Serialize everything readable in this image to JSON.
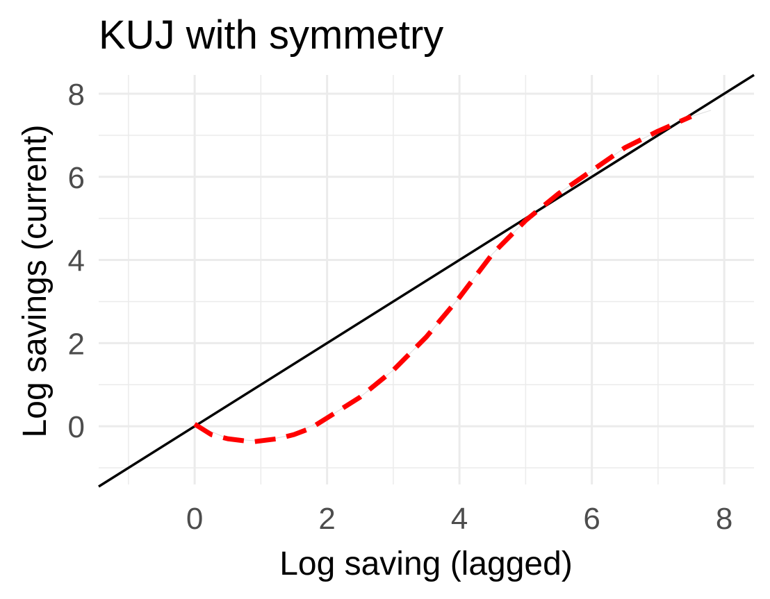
{
  "chart_data": {
    "type": "line",
    "title": "KUJ with symmetry",
    "xlabel": "Log saving (lagged)",
    "ylabel": "Log savings (current)",
    "xlim": [
      -1.45,
      8.45
    ],
    "ylim": [
      -1.4,
      8.45
    ],
    "x_ticks": [
      0,
      2,
      4,
      6,
      8
    ],
    "y_ticks": [
      0,
      2,
      4,
      6,
      8
    ],
    "grid": true,
    "legend": "none",
    "series": [
      {
        "style": "solid",
        "color": "#000000",
        "x": [
          -1.45,
          8.45
        ],
        "y": [
          -1.45,
          8.45
        ]
      },
      {
        "style": "dashed",
        "color": "#ff0000",
        "x": [
          0.0,
          0.25,
          0.5,
          0.75,
          0.9,
          1.25,
          1.5,
          1.75,
          2.0,
          2.5,
          3.0,
          3.5,
          4.0,
          4.5,
          5.0,
          5.5,
          6.0,
          6.5,
          7.0,
          7.5
        ],
        "y": [
          0.05,
          -0.2,
          -0.3,
          -0.35,
          -0.37,
          -0.3,
          -0.2,
          -0.05,
          0.2,
          0.7,
          1.35,
          2.15,
          3.1,
          4.15,
          4.95,
          5.6,
          6.15,
          6.7,
          7.1,
          7.45
        ]
      },
      {
        "style": "thin",
        "color": "#dddddd",
        "x": [
          0.0,
          0.5,
          1.0,
          1.5,
          2.0,
          2.5,
          3.0,
          3.5,
          4.0,
          4.5,
          5.0,
          5.5,
          6.0,
          6.5,
          7.0,
          7.5,
          7.8
        ],
        "y": [
          0.05,
          -0.3,
          -0.36,
          -0.2,
          0.2,
          0.7,
          1.35,
          2.15,
          3.1,
          4.15,
          4.95,
          5.6,
          6.15,
          6.7,
          7.1,
          7.45,
          7.6
        ]
      }
    ]
  }
}
